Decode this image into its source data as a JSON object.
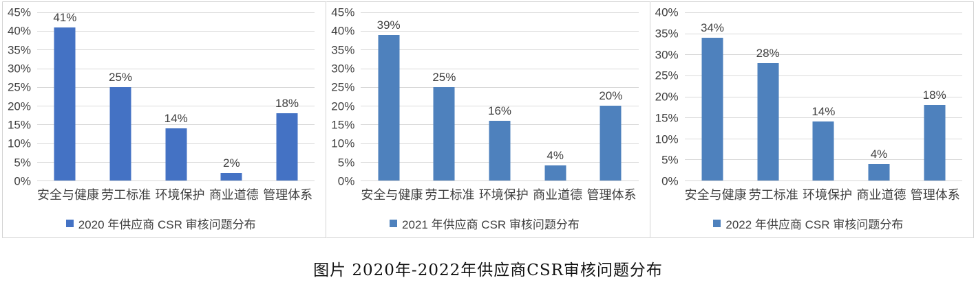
{
  "caption": "图片 2020年-2022年供应商CSR审核问题分布",
  "chart_data": [
    {
      "type": "bar",
      "legend": "2020 年供应商 CSR 审核问题分布",
      "categories": [
        "安全与健康",
        "劳工标准",
        "环境保护",
        "商业道德",
        "管理体系"
      ],
      "values": [
        41,
        25,
        14,
        2,
        18
      ],
      "data_labels": [
        "41%",
        "25%",
        "14%",
        "2%",
        "18%"
      ],
      "y_ticks": [
        "45%",
        "40%",
        "35%",
        "30%",
        "25%",
        "20%",
        "15%",
        "10%",
        "5%",
        "0%"
      ],
      "ylim": [
        0,
        45
      ],
      "y_step": 5,
      "bar_color": "#4472C4",
      "grid": true,
      "legend_position": "bottom"
    },
    {
      "type": "bar",
      "legend": "2021 年供应商 CSR 审核问题分布",
      "categories": [
        "安全与健康",
        "劳工标准",
        "环境保护",
        "商业道德",
        "管理体系"
      ],
      "values": [
        39,
        25,
        16,
        4,
        20
      ],
      "data_labels": [
        "39%",
        "25%",
        "16%",
        "4%",
        "20%"
      ],
      "y_ticks": [
        "45%",
        "40%",
        "35%",
        "30%",
        "25%",
        "20%",
        "15%",
        "10%",
        "5%",
        "0%"
      ],
      "ylim": [
        0,
        45
      ],
      "y_step": 5,
      "bar_color": "#4E81BD",
      "grid": true,
      "legend_position": "bottom"
    },
    {
      "type": "bar",
      "legend": "2022 年供应商 CSR 审核问题分布",
      "categories": [
        "安全与健康",
        "劳工标准",
        "环境保护",
        "商业道德",
        "管理体系"
      ],
      "values": [
        34,
        28,
        14,
        4,
        18
      ],
      "data_labels": [
        "34%",
        "28%",
        "14%",
        "4%",
        "18%"
      ],
      "y_ticks": [
        "40%",
        "35%",
        "30%",
        "25%",
        "20%",
        "15%",
        "10%",
        "5%",
        "0%"
      ],
      "ylim": [
        0,
        40
      ],
      "y_step": 5,
      "bar_color": "#4E81BD",
      "grid": true,
      "legend_position": "bottom"
    }
  ]
}
